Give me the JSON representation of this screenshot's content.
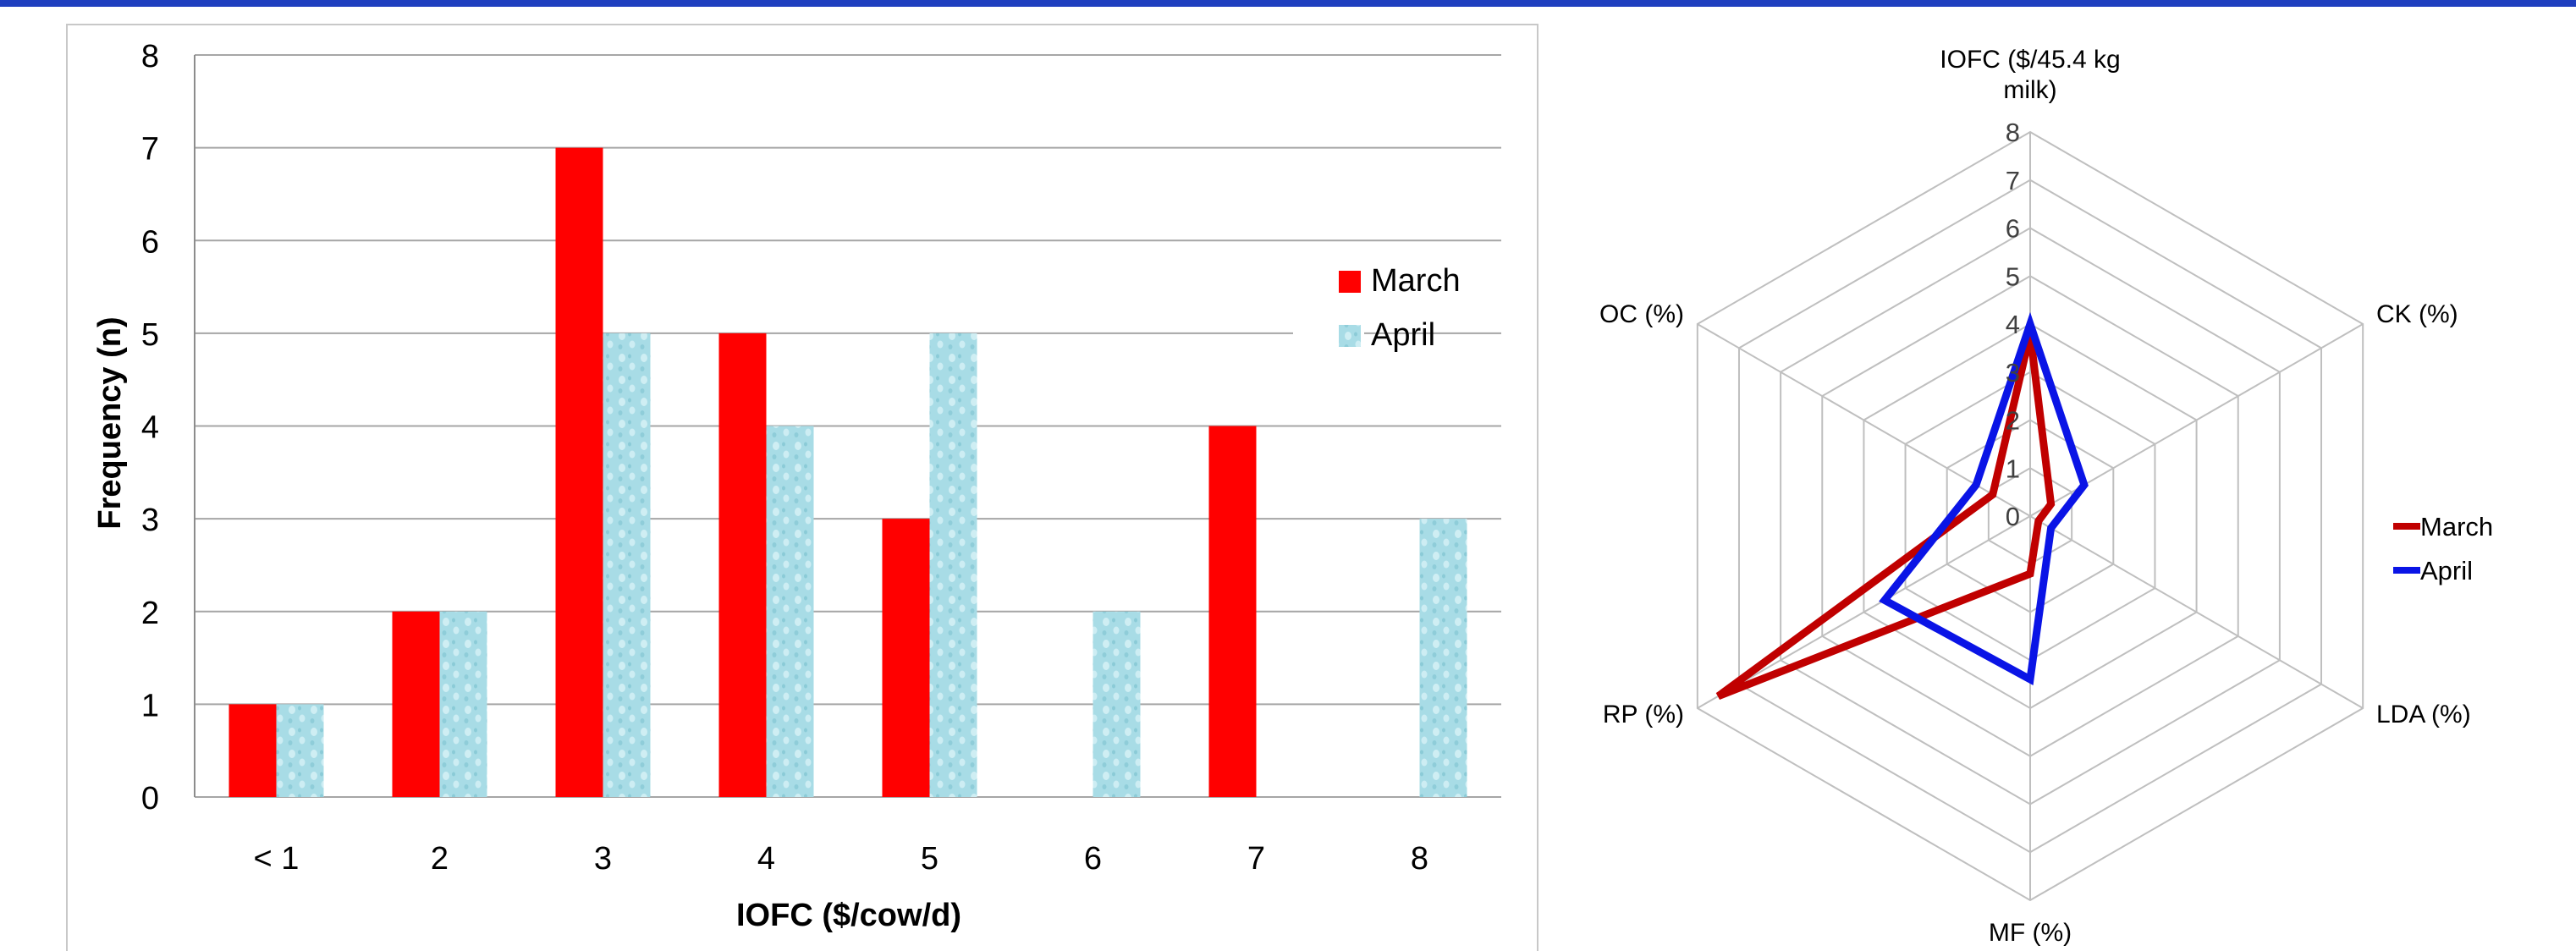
{
  "chart_data": [
    {
      "type": "bar",
      "title": "",
      "xlabel": "IOFC ($/cow/d)",
      "ylabel": "Frequency (n)",
      "categories": [
        "< 1",
        "2",
        "3",
        "4",
        "5",
        "6",
        "7",
        "8"
      ],
      "ylim": [
        0,
        8
      ],
      "yticks": [
        0,
        1,
        2,
        3,
        4,
        5,
        6,
        7,
        8
      ],
      "grid": true,
      "legend_position": "right",
      "series": [
        {
          "name": "March",
          "values": [
            1,
            2,
            7,
            5,
            3,
            0,
            4,
            0
          ],
          "color": "#ff0000"
        },
        {
          "name": "April",
          "values": [
            1,
            2,
            5,
            4,
            5,
            2,
            0,
            3
          ],
          "color": "#a8dce6"
        }
      ]
    },
    {
      "type": "radar",
      "title": "",
      "axes": [
        "IOFC ($/45.4 kg milk)",
        "CK (%)",
        "LDA (%)",
        "MF (%)",
        "RP (%)",
        "OC (%)"
      ],
      "rlim": [
        0,
        8
      ],
      "rticks": [
        0,
        1,
        2,
        3,
        4,
        5,
        6,
        7,
        8
      ],
      "grid": true,
      "legend_position": "right",
      "series": [
        {
          "name": "March",
          "values": [
            3.8,
            0.5,
            0.2,
            1.2,
            7.5,
            0.9
          ],
          "color": "#c00000"
        },
        {
          "name": "April",
          "values": [
            4.0,
            1.3,
            0.5,
            3.4,
            3.5,
            1.3
          ],
          "color": "#0a14e6"
        }
      ]
    }
  ]
}
